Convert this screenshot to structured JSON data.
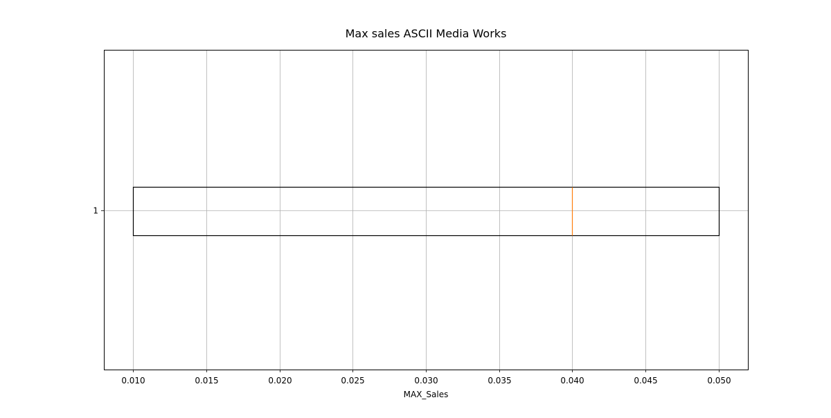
{
  "chart_data": {
    "type": "box",
    "orientation": "horizontal",
    "title": "Max sales ASCII Media Works",
    "xlabel": "MAX_Sales",
    "ylabel": "",
    "xlim": [
      0.008,
      0.052
    ],
    "x_ticks": [
      0.01,
      0.015,
      0.02,
      0.025,
      0.03,
      0.035,
      0.04,
      0.045,
      0.05
    ],
    "x_tick_labels": [
      "0.010",
      "0.015",
      "0.020",
      "0.025",
      "0.030",
      "0.035",
      "0.040",
      "0.045",
      "0.050"
    ],
    "y_tick_labels": [
      "1"
    ],
    "grid": true,
    "boxes": [
      {
        "label": "1",
        "whisker_low": 0.01,
        "q1": 0.01,
        "median": 0.04,
        "q3": 0.05,
        "whisker_high": 0.05
      }
    ],
    "colors": {
      "box": "#000000",
      "median": "#ff7f0e",
      "grid": "#b0b0b0"
    }
  }
}
